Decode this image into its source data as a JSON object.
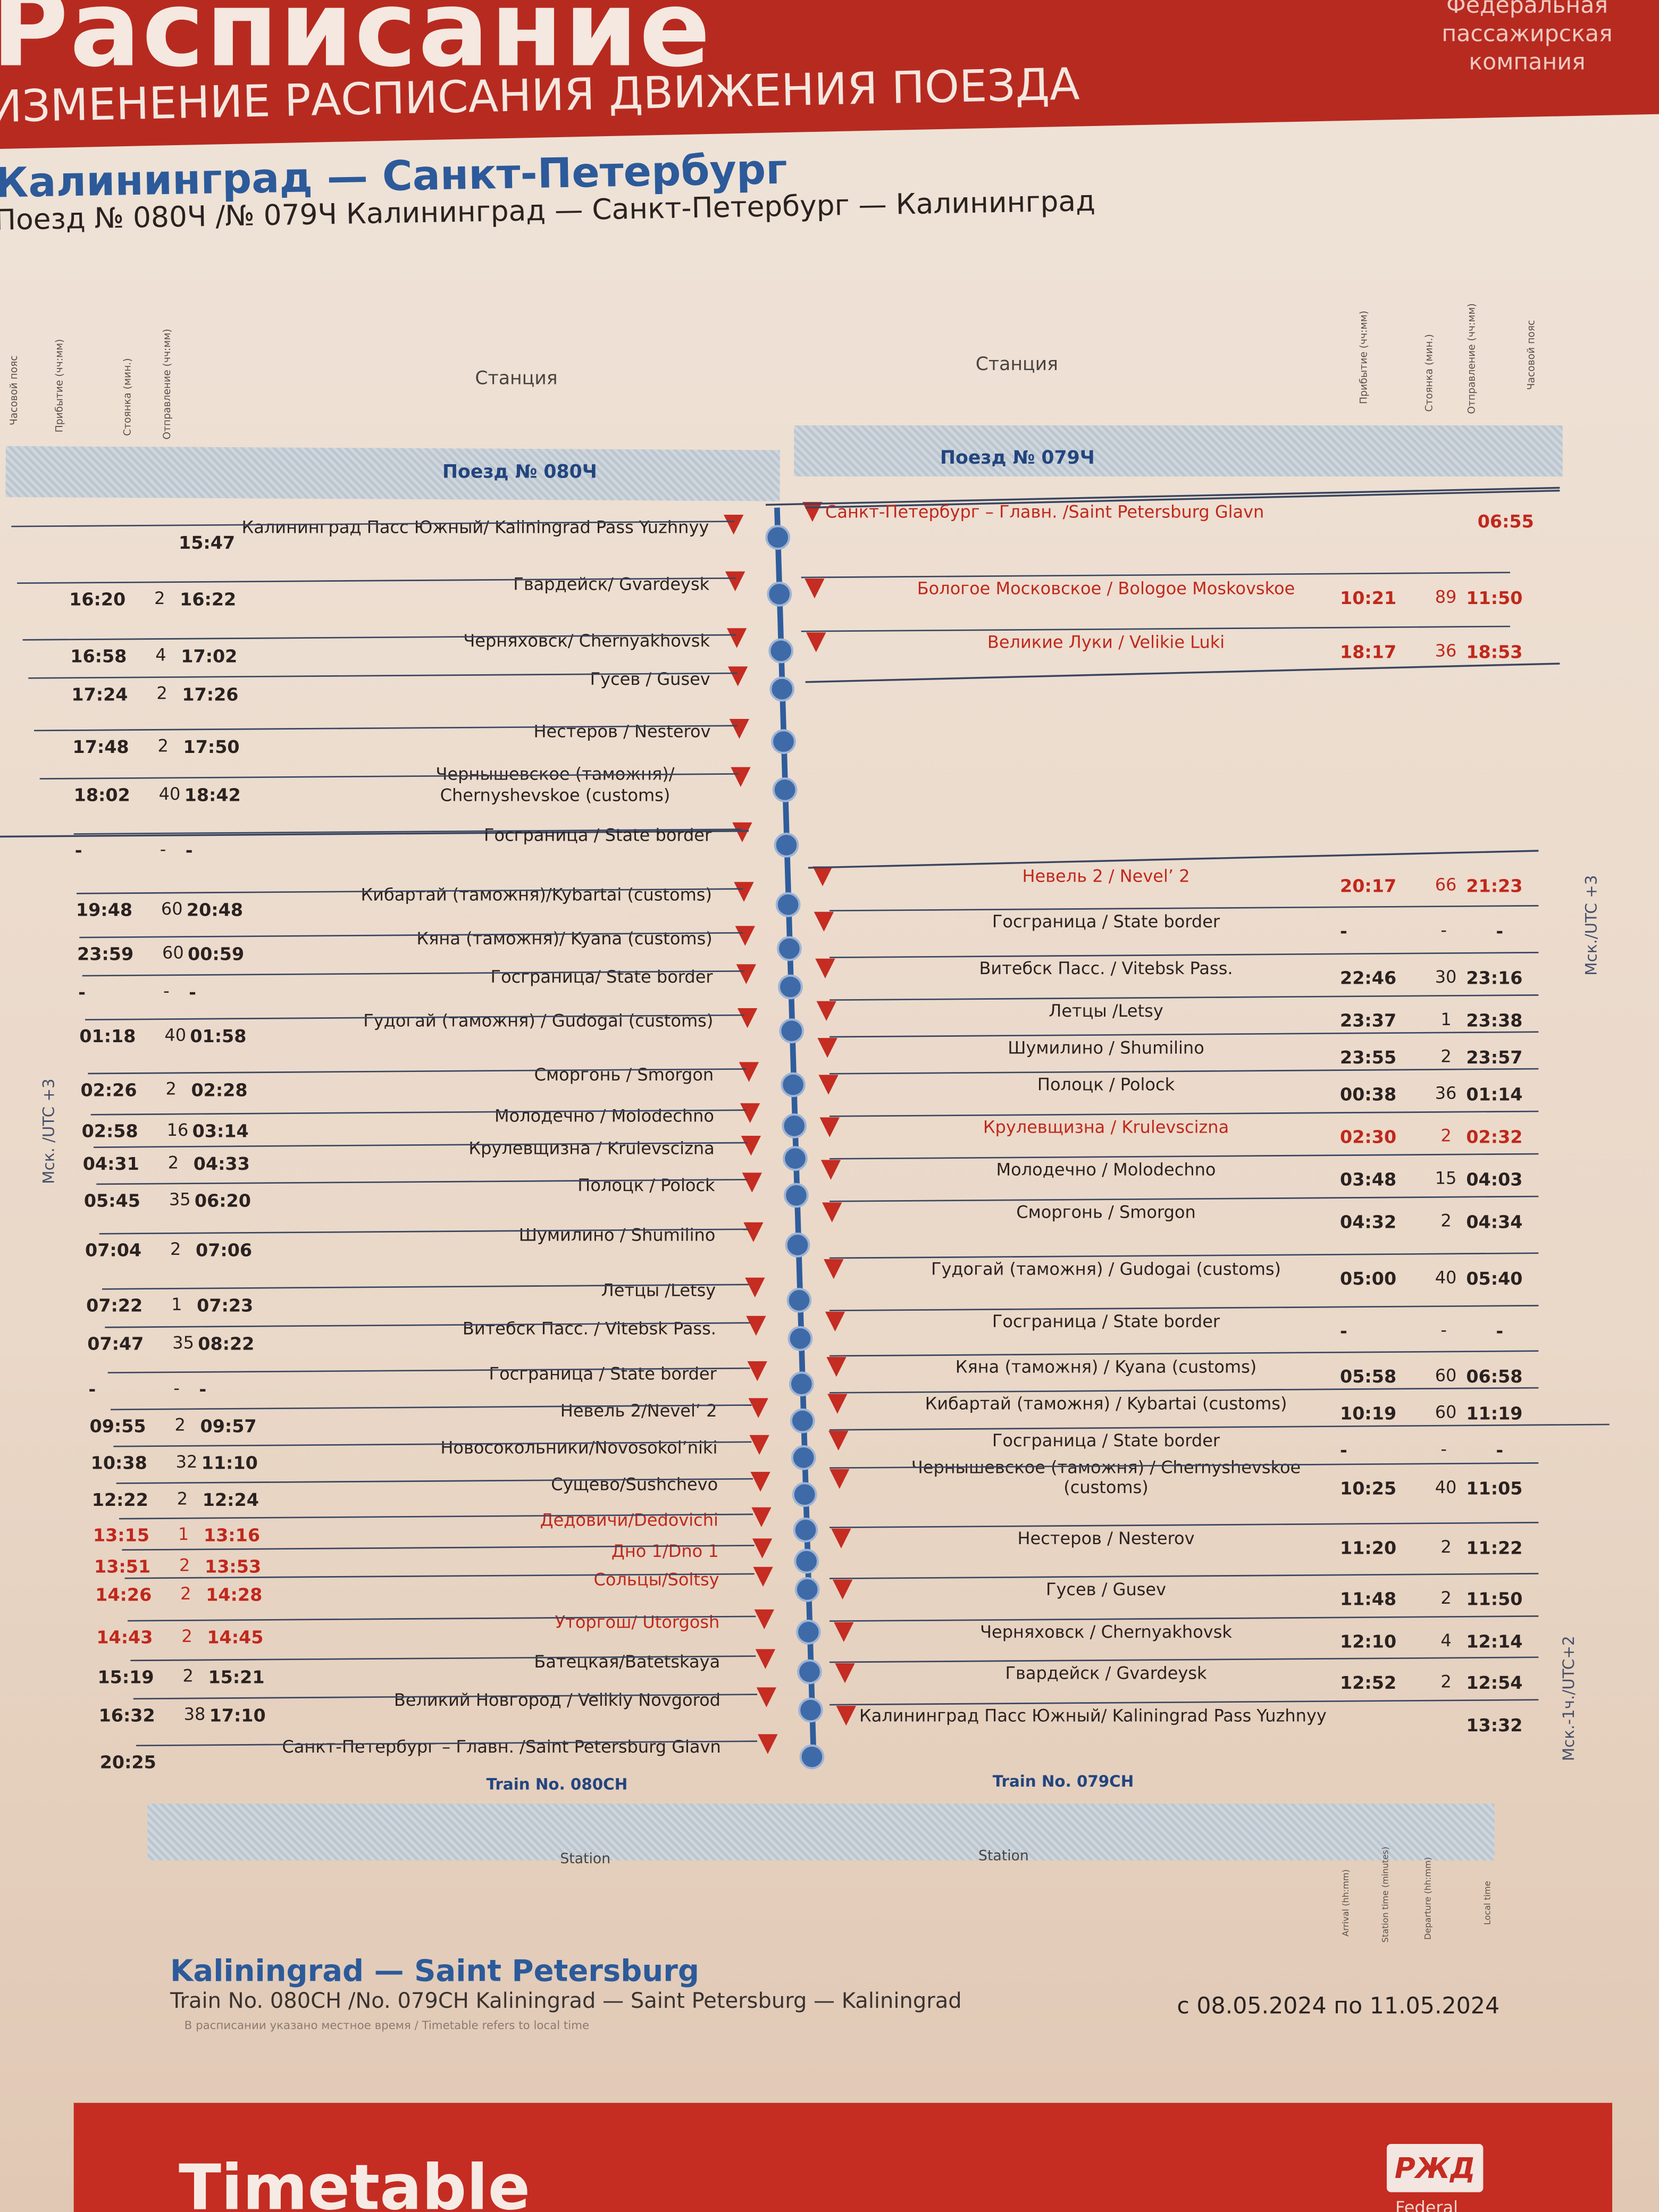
{
  "header": {
    "title": "Расписание",
    "subtitle": "ИЗМЕНЕНИЕ РАСПИСАНИЯ ДВИЖЕНИЯ ПОЕЗДА",
    "logo_text": "Федеральная пассажирская компания",
    "route": "Калининград — Санкт-Петербург",
    "trains": "Поезд № 080Ч /№ 079Ч Калининград — Санкт-Петербург — Калининград"
  },
  "columns_ru": {
    "timezone": "Часовой пояс",
    "arrival": "Прибытие (чч:мм)",
    "stop": "Стоянка (мин.)",
    "departure": "Отправление (чч:мм)",
    "station": "Станция"
  },
  "columns_en": {
    "arrival": "Arrival (hh:mm)",
    "stop": "Station time (minutes)",
    "departure": "Departure (hh:mm)",
    "local": "Local time",
    "station": "Station"
  },
  "left": {
    "train_ru": "Поезд № 080Ч",
    "train_en": "Train No. 080CH",
    "timezone": "Мск. /UTC +3",
    "rows": [
      {
        "arr": "",
        "stop": "",
        "dep": "15:47",
        "station": "Калининград Пасс Южный/ Kaliningrad Pass Yuzhnyy"
      },
      {
        "arr": "16:20",
        "stop": "2",
        "dep": "16:22",
        "station": "Гвардейск/ Gvardeysk"
      },
      {
        "arr": "16:58",
        "stop": "4",
        "dep": "17:02",
        "station": "Черняховск/ Chernyakhovsk"
      },
      {
        "arr": "17:24",
        "stop": "2",
        "dep": "17:26",
        "station": "Гусев / Gusev"
      },
      {
        "arr": "17:48",
        "stop": "2",
        "dep": "17:50",
        "station": "Нестеров / Nesterov"
      },
      {
        "arr": "18:02",
        "stop": "40",
        "dep": "18:42",
        "station": "Чернышевское (таможня)/ Chernyshevskoe (customs)"
      },
      {
        "arr": "-",
        "stop": "-",
        "dep": "-",
        "station": "Госграница / State border"
      },
      {
        "arr": "19:48",
        "stop": "60",
        "dep": "20:48",
        "station": "Кибартай (таможня)/Kybartai (customs)"
      },
      {
        "arr": "23:59",
        "stop": "60",
        "dep": "00:59",
        "station": "Кяна (таможня)/ Kyana (customs)"
      },
      {
        "arr": "-",
        "stop": "-",
        "dep": "-",
        "station": "Госграница/  State border"
      },
      {
        "arr": "01:18",
        "stop": "40",
        "dep": "01:58",
        "station": "Гудогай (таможня) / Gudogai (customs)"
      },
      {
        "arr": "02:26",
        "stop": "2",
        "dep": "02:28",
        "station": "Сморгонь /  Smorgon"
      },
      {
        "arr": "02:58",
        "stop": "16",
        "dep": "03:14",
        "station": "Молодечно /  Molodechno"
      },
      {
        "arr": "04:31",
        "stop": "2",
        "dep": "04:33",
        "station": "Крулевщизна / Krulevscizna"
      },
      {
        "arr": "05:45",
        "stop": "35",
        "dep": "06:20",
        "station": "Полоцк / Polock"
      },
      {
        "arr": "07:04",
        "stop": "2",
        "dep": "07:06",
        "station": "Шумилино / Shumilino"
      },
      {
        "arr": "07:22",
        "stop": "1",
        "dep": "07:23",
        "station": "Летцы /Letsy"
      },
      {
        "arr": "07:47",
        "stop": "35",
        "dep": "08:22",
        "station": "Витебск Пасс. / Vitebsk Pass."
      },
      {
        "arr": "-",
        "stop": "-",
        "dep": "-",
        "station": "Госграница /  State border"
      },
      {
        "arr": "09:55",
        "stop": "2",
        "dep": "09:57",
        "station": "Невель 2/Nevel’ 2"
      },
      {
        "arr": "10:38",
        "stop": "32",
        "dep": "11:10",
        "station": "Новосокольники/Novosokol’niki"
      },
      {
        "arr": "12:22",
        "stop": "2",
        "dep": "12:24",
        "station": "Сущево/Sushchevo"
      },
      {
        "arr": "13:15",
        "stop": "1",
        "dep": "13:16",
        "station": "Дедовичи/Dedovichi",
        "highlight": true
      },
      {
        "arr": "13:51",
        "stop": "2",
        "dep": "13:53",
        "station": "Дно 1/Dno 1",
        "highlight": true
      },
      {
        "arr": "14:26",
        "stop": "2",
        "dep": "14:28",
        "station": "Сольцы/Soltsy",
        "highlight": true
      },
      {
        "arr": "14:43",
        "stop": "2",
        "dep": "14:45",
        "station": "Уторгош/ Utorgosh",
        "highlight": true
      },
      {
        "arr": "15:19",
        "stop": "2",
        "dep": "15:21",
        "station": "Батецкая/Batetskaya"
      },
      {
        "arr": "16:32",
        "stop": "38",
        "dep": "17:10",
        "station": "Великий Новгород / Velikiy Novgorod"
      },
      {
        "arr": "20:25",
        "stop": "",
        "dep": "",
        "station": "Санкт-Петербург – Главн. /Saint Petersburg Glavn"
      }
    ]
  },
  "right": {
    "train_ru": "Поезд № 079Ч",
    "train_en": "Train No. 079CH",
    "timezone_top": "Мск./UTC +3",
    "timezone_bottom": "Мск.-1ч./UTC+2",
    "rows": [
      {
        "station": "Санкт-Петербург – Главн. /Saint Petersburg Glavn",
        "arr": "",
        "stop": "",
        "dep": "06:55",
        "highlight": true
      },
      {
        "station": "Бологое Московское / Bologoe Moskovskoe",
        "arr": "10:21",
        "stop": "89",
        "dep": "11:50",
        "highlight": true
      },
      {
        "station": "Великие Луки / Velikie Luki",
        "arr": "18:17",
        "stop": "36",
        "dep": "18:53",
        "highlight": true
      },
      {
        "station": "Невель 2 / Nevel’ 2",
        "arr": "20:17",
        "stop": "66",
        "dep": "21:23",
        "highlight": true
      },
      {
        "station": "Госграница  /  State border",
        "arr": "-",
        "stop": "-",
        "dep": "-"
      },
      {
        "station": "Витебск Пасс. / Vitebsk Pass.",
        "arr": "22:46",
        "stop": "30",
        "dep": "23:16"
      },
      {
        "station": "Летцы /Letsy",
        "arr": "23:37",
        "stop": "1",
        "dep": "23:38"
      },
      {
        "station": "Шумилино / Shumilino",
        "arr": "23:55",
        "stop": "2",
        "dep": "23:57"
      },
      {
        "station": "Полоцк /  Polock",
        "arr": "00:38",
        "stop": "36",
        "dep": "01:14"
      },
      {
        "station": "Крулевщизна / Krulevscizna",
        "arr": "02:30",
        "stop": "2",
        "dep": "02:32",
        "highlight": true
      },
      {
        "station": "Молодечно /  Molodechno",
        "arr": "03:48",
        "stop": "15",
        "dep": "04:03"
      },
      {
        "station": "Сморгонь /  Smorgon",
        "arr": "04:32",
        "stop": "2",
        "dep": "04:34"
      },
      {
        "station": "Гудогай (таможня) / Gudogai (customs)",
        "arr": "05:00",
        "stop": "40",
        "dep": "05:40"
      },
      {
        "station": "Госграница /  State border",
        "arr": "-",
        "stop": "-",
        "dep": "-"
      },
      {
        "station": "Кяна (таможня) / Kyana (customs)",
        "arr": "05:58",
        "stop": "60",
        "dep": "06:58"
      },
      {
        "station": "Кибартай (таможня) / Kybartai (customs)",
        "arr": "10:19",
        "stop": "60",
        "dep": "11:19"
      },
      {
        "station": "Госграница / State border",
        "arr": "-",
        "stop": "-",
        "dep": "-"
      },
      {
        "station": "Чернышевское (таможня) / Chernyshevskoe (customs)",
        "arr": "10:25",
        "stop": "40",
        "dep": "11:05"
      },
      {
        "station": "Нестеров / Nesterov",
        "arr": "11:20",
        "stop": "2",
        "dep": "11:22"
      },
      {
        "station": "Гусев / Gusev",
        "arr": "11:48",
        "stop": "2",
        "dep": "11:50"
      },
      {
        "station": "Черняховск / Chernyakhovsk",
        "arr": "12:10",
        "stop": "4",
        "dep": "12:14"
      },
      {
        "station": "Гвардейск / Gvardeysk",
        "arr": "12:52",
        "stop": "2",
        "dep": "12:54"
      },
      {
        "station": "Калининград Пасс Южный/ Kaliningrad Pass Yuzhnyy",
        "arr": "",
        "stop": "",
        "dep": "13:32"
      }
    ]
  },
  "footer": {
    "route_en": "Kaliningrad — Saint Petersburg",
    "trains_en": "Train No. 080CH /No. 079CH Kaliningrad — Saint Petersburg — Kaliningrad",
    "note": "В расписании указано местное время / Timetable refers to local time",
    "validity": "с 08.05.2024 по 11.05.2024",
    "banner": "Timetable",
    "logo": "РЖД",
    "logo_caption": "Federal"
  },
  "colors": {
    "brand_red": "#b72a20",
    "title_blue": "#2c5a9a",
    "line_blue": "#2f5d9c",
    "highlight_red": "#c0281c"
  }
}
